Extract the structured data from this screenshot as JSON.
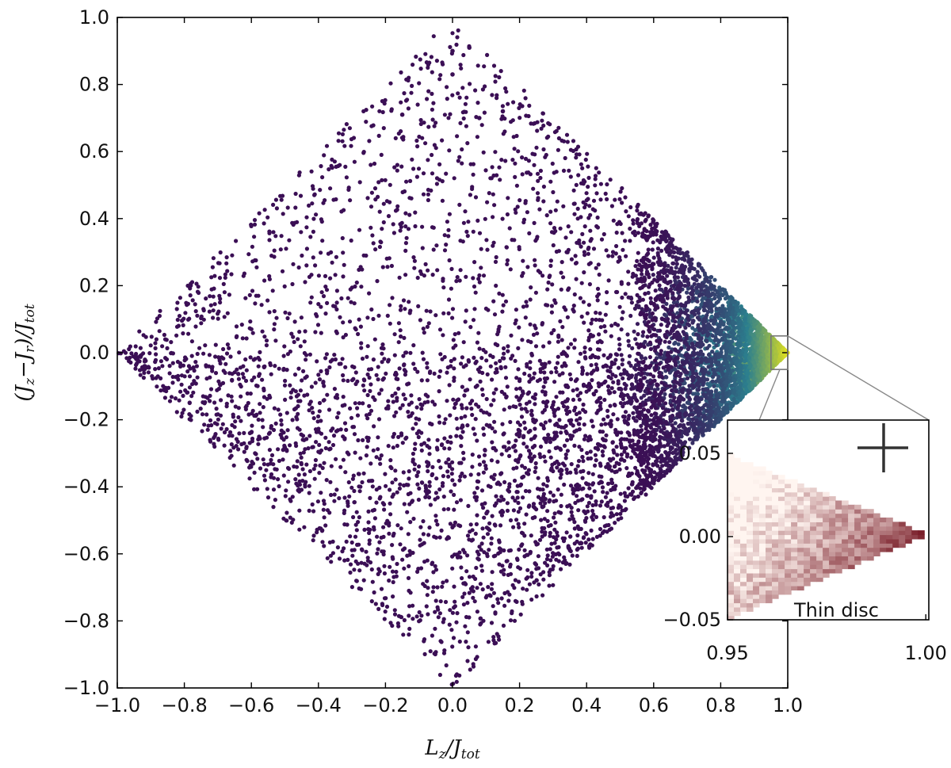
{
  "chart_data": [
    {
      "type": "scatter",
      "title": "",
      "xlabel": "Lz/Jtot",
      "ylabel": "(Jz−Jr)/Jtot",
      "xlim": [
        -1.0,
        1.0
      ],
      "ylim": [
        -1.0,
        1.0
      ],
      "x_ticks": [
        "−1.0",
        "−0.8",
        "−0.6",
        "−0.4",
        "−0.2",
        "0.0",
        "0.2",
        "0.4",
        "0.6",
        "0.8",
        "1.0"
      ],
      "y_ticks": [
        "−1.0",
        "−0.8",
        "−0.6",
        "−0.4",
        "−0.2",
        "0.0",
        "0.2",
        "0.4",
        "0.6",
        "0.8",
        "1.0"
      ],
      "colormap": "viridis",
      "colors": {
        "low": "#3b0f55",
        "mid": "#2c7f8e",
        "high": "#e8e419"
      },
      "grid": false,
      "description_points": {
        "region": "diamond |x|+|y|≤1 with x ≥ −1, density increasing toward (1, 0)",
        "outliers": [
          {
            "x": 0.0,
            "y": 0.9
          },
          {
            "x": 0.05,
            "y": 0.91
          },
          {
            "x": 0.0,
            "y": 0.83
          },
          {
            "x": -0.15,
            "y": 0.71
          },
          {
            "x": 0.08,
            "y": 0.7
          },
          {
            "x": 0.15,
            "y": 0.72
          }
        ]
      },
      "zoom_box": {
        "x": [
          0.95,
          1.0
        ],
        "y": [
          -0.05,
          0.05
        ]
      }
    },
    {
      "type": "heatmap",
      "label": "Thin disc",
      "xlim": [
        0.95,
        1.0
      ],
      "ylim": [
        -0.05,
        0.07
      ],
      "x_ticks": [
        "0.95",
        "1.00"
      ],
      "y_ticks": [
        "−0.05",
        "0.00",
        "0.05"
      ],
      "colormap": "reds",
      "colors": {
        "low": "#fff5f0",
        "high": "#67000d"
      },
      "error_cross": {
        "x": 0.988,
        "y": 0.044
      }
    }
  ],
  "inset_caption": "Thin disc"
}
